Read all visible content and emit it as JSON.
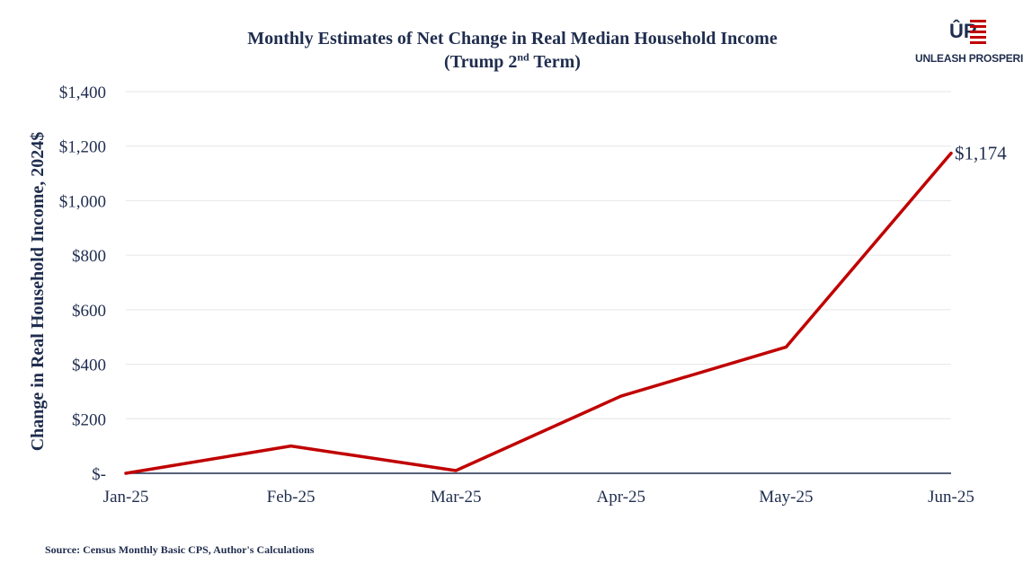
{
  "title": {
    "line1": "Monthly Estimates of Net Change in Real Median Household Income",
    "line2_prefix": "(Trump 2",
    "line2_sup": "nd",
    "line2_suffix": " Term)"
  },
  "logo": {
    "text": "UNLEASH PROSPERITY",
    "mark": "ÛP"
  },
  "source": "Source: Census Monthly Basic CPS, Author's Calculations",
  "colors": {
    "line": "#c00000",
    "text": "#1f2d4e",
    "grid": "#e6e6e6",
    "axis": "#1f2d4e"
  },
  "chart_data": {
    "type": "line",
    "title": "Monthly Estimates of Net Change in Real Median Household Income (Trump 2nd Term)",
    "xlabel": "",
    "ylabel": "Change in Real Household Income, 2024$",
    "categories": [
      "Jan-25",
      "Feb-25",
      "Mar-25",
      "Apr-25",
      "May-25",
      "Jun-25"
    ],
    "series": [
      {
        "name": "Net Change in Real Median Household Income",
        "values": [
          0,
          100,
          10,
          283,
          463,
          1174
        ]
      }
    ],
    "ylim": [
      0,
      1400
    ],
    "yticks": [
      0,
      200,
      400,
      600,
      800,
      1000,
      1200,
      1400
    ],
    "ytick_labels": [
      "$-",
      "$200",
      "$400",
      "$600",
      "$800",
      "$1,000",
      "$1,200",
      "$1,400"
    ],
    "data_labels": [
      {
        "index": 5,
        "text": "$1,174"
      }
    ],
    "grid": true
  }
}
